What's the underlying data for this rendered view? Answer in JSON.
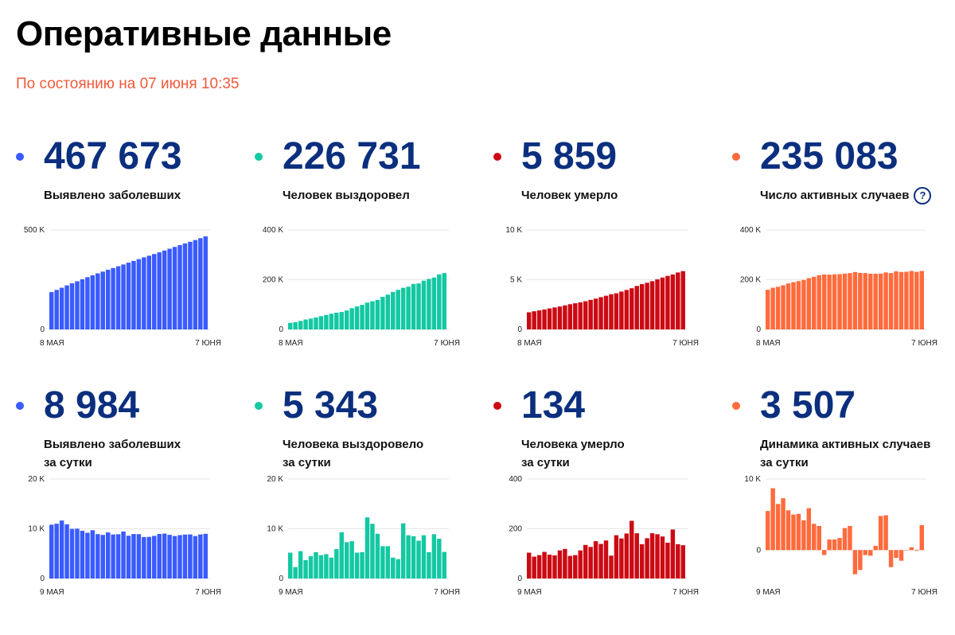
{
  "page": {
    "title": "Оперативные данные",
    "subtitle": "По состоянию на 07 июня 10:35"
  },
  "colors": {
    "blue": "#3a5bff",
    "green": "#13c8a2",
    "red": "#cc0a14",
    "orange": "#ff6b3d",
    "number": "#0b2f7e",
    "subtitle": "#f05a3a"
  },
  "cards": [
    {
      "value": "467 673",
      "label_line1": "Выявлено заболевших",
      "label_line2": ""
    },
    {
      "value": "226 731",
      "label_line1": "Человек выздоровел",
      "label_line2": ""
    },
    {
      "value": "5 859",
      "label_line1": "Человек умерло",
      "label_line2": ""
    },
    {
      "value": "235 083",
      "label_line1": "Число активных случаев",
      "label_line2": "",
      "help_icon": "question-circle-icon"
    },
    {
      "value": "8 984",
      "label_line1": "Выявлено заболевших",
      "label_line2": "за сутки"
    },
    {
      "value": "5 343",
      "label_line1": "Человека выздоровело",
      "label_line2": "за сутки"
    },
    {
      "value": "134",
      "label_line1": "Человека умерло",
      "label_line2": "за сутки"
    },
    {
      "value": "3 507",
      "label_line1": "Динамика активных случаев",
      "label_line2": "за сутки"
    }
  ],
  "chart_data": [
    {
      "type": "bar",
      "color": "blue",
      "ylim": [
        0,
        500000
      ],
      "yticks": [
        {
          "v": 0,
          "label": "0"
        },
        {
          "v": 500000,
          "label": "500 K"
        }
      ],
      "x_start": "8 МАЯ",
      "x_end": "7 ЮНЯ",
      "values": [
        187859,
        198676,
        209688,
        221344,
        232243,
        242271,
        252245,
        262843,
        272043,
        281752,
        290678,
        299941,
        308705,
        317554,
        326448,
        335882,
        344481,
        353427,
        362342,
        370680,
        379051,
        387623,
        396575,
        405843,
        414878,
        423741,
        432277,
        440538,
        449256,
        458689,
        467673
      ]
    },
    {
      "type": "bar",
      "color": "green",
      "ylim": [
        0,
        400000
      ],
      "yticks": [
        {
          "v": 0,
          "label": "0"
        },
        {
          "v": 200000,
          "label": "200 K"
        },
        {
          "v": 400000,
          "label": "400 K"
        }
      ],
      "x_start": "8 МАЯ",
      "x_end": "7 ЮНЯ",
      "values": [
        26608,
        29145,
        34306,
        39801,
        43512,
        48003,
        53530,
        58226,
        63166,
        67373,
        70209,
        76130,
        85392,
        92681,
        98825,
        107936,
        113299,
        118798,
        131129,
        139979,
        150993,
        159257,
        167469,
        171883,
        183118,
        185090,
        195957,
        203211,
        208688,
        221388,
        226731
      ]
    },
    {
      "type": "bar",
      "color": "red",
      "ylim": [
        0,
        10000
      ],
      "yticks": [
        {
          "v": 0,
          "label": "0"
        },
        {
          "v": 5000,
          "label": "5 K"
        },
        {
          "v": 10000,
          "label": "10 K"
        }
      ],
      "x_start": "8 МАЯ",
      "x_end": "7 ЮНЯ",
      "values": [
        1723,
        1827,
        1915,
        2009,
        2116,
        2212,
        2305,
        2418,
        2537,
        2631,
        2722,
        2837,
        2972,
        3099,
        3249,
        3388,
        3541,
        3633,
        3807,
        3968,
        4142,
        4374,
        4555,
        4693,
        4855,
        5037,
        5215,
        5384,
        5528,
        5725,
        5859
      ]
    },
    {
      "type": "bar",
      "color": "orange",
      "ylim": [
        0,
        400000
      ],
      "yticks": [
        {
          "v": 0,
          "label": "0"
        },
        {
          "v": 200000,
          "label": "200 K"
        },
        {
          "v": 400000,
          "label": "400 K"
        }
      ],
      "x_start": "8 МАЯ",
      "x_end": "7 ЮНЯ",
      "values": [
        159528,
        167704,
        171467,
        177734,
        184965,
        190056,
        194410,
        199199,
        206340,
        211748,
        217747,
        220974,
        220341,
        221774,
        222374,
        224558,
        226641,
        230996,
        227406,
        226733,
        223916,
        223992,
        224551,
        229267,
        226905,
        233614,
        231105,
        231943,
        235040,
        231576,
        235083
      ]
    },
    {
      "type": "bar",
      "color": "blue",
      "ylim": [
        0,
        20000
      ],
      "yticks": [
        {
          "v": 0,
          "label": "0"
        },
        {
          "v": 10000,
          "label": "10 K"
        },
        {
          "v": 20000,
          "label": "20 K"
        }
      ],
      "x_start": "9 МАЯ",
      "x_end": "7 ЮНЯ",
      "values": [
        10817,
        11012,
        11656,
        10899,
        9974,
        10028,
        9598,
        9200,
        9709,
        8926,
        8764,
        9263,
        8849,
        8894,
        9434,
        8599,
        8946,
        8915,
        8338,
        8371,
        8572,
        8952,
        9035,
        8779,
        8536,
        8726,
        8831,
        8863,
        8536,
        8855,
        8984
      ]
    },
    {
      "type": "bar",
      "color": "green",
      "ylim": [
        0,
        20000
      ],
      "yticks": [
        {
          "v": 0,
          "label": "0"
        },
        {
          "v": 10000,
          "label": "10 K"
        },
        {
          "v": 20000,
          "label": "20 K"
        }
      ],
      "x_start": "9 МАЯ",
      "x_end": "7 ЮНЯ",
      "values": [
        5200,
        2300,
        5500,
        3700,
        4500,
        5300,
        4700,
        4900,
        4200,
        5900,
        9300,
        7300,
        7500,
        5200,
        5300,
        12300,
        11000,
        9000,
        6500,
        6500,
        4200,
        3900,
        11100,
        8700,
        8500,
        7600,
        8700,
        5300,
        8900,
        8000,
        5343
      ]
    },
    {
      "type": "bar",
      "color": "red",
      "ylim": [
        0,
        400
      ],
      "yticks": [
        {
          "v": 0,
          "label": "0"
        },
        {
          "v": 200,
          "label": "200"
        },
        {
          "v": 400,
          "label": "400"
        }
      ],
      "x_start": "9 МАЯ",
      "x_end": "7 ЮНЯ",
      "values": [
        104,
        88,
        94,
        107,
        96,
        93,
        113,
        119,
        91,
        94,
        113,
        135,
        127,
        150,
        139,
        153,
        92,
        174,
        161,
        181,
        232,
        182,
        138,
        162,
        182,
        178,
        169,
        144,
        197,
        138,
        134
      ]
    },
    {
      "type": "bar",
      "color": "orange",
      "ylim": [
        -4000,
        10000
      ],
      "yticks": [
        {
          "v": 0,
          "label": "0"
        },
        {
          "v": 10000,
          "label": "10 K"
        }
      ],
      "x_start": "9 МАЯ",
      "x_end": "7 ЮНЯ",
      "values": [
        5500,
        8700,
        6500,
        7300,
        5600,
        5000,
        5100,
        4200,
        5900,
        3700,
        3400,
        -700,
        1500,
        1500,
        1700,
        3100,
        3400,
        -3400,
        -2800,
        -700,
        -800,
        600,
        4800,
        4900,
        -2400,
        -1100,
        -1500,
        0,
        400,
        -100,
        3507
      ]
    }
  ]
}
